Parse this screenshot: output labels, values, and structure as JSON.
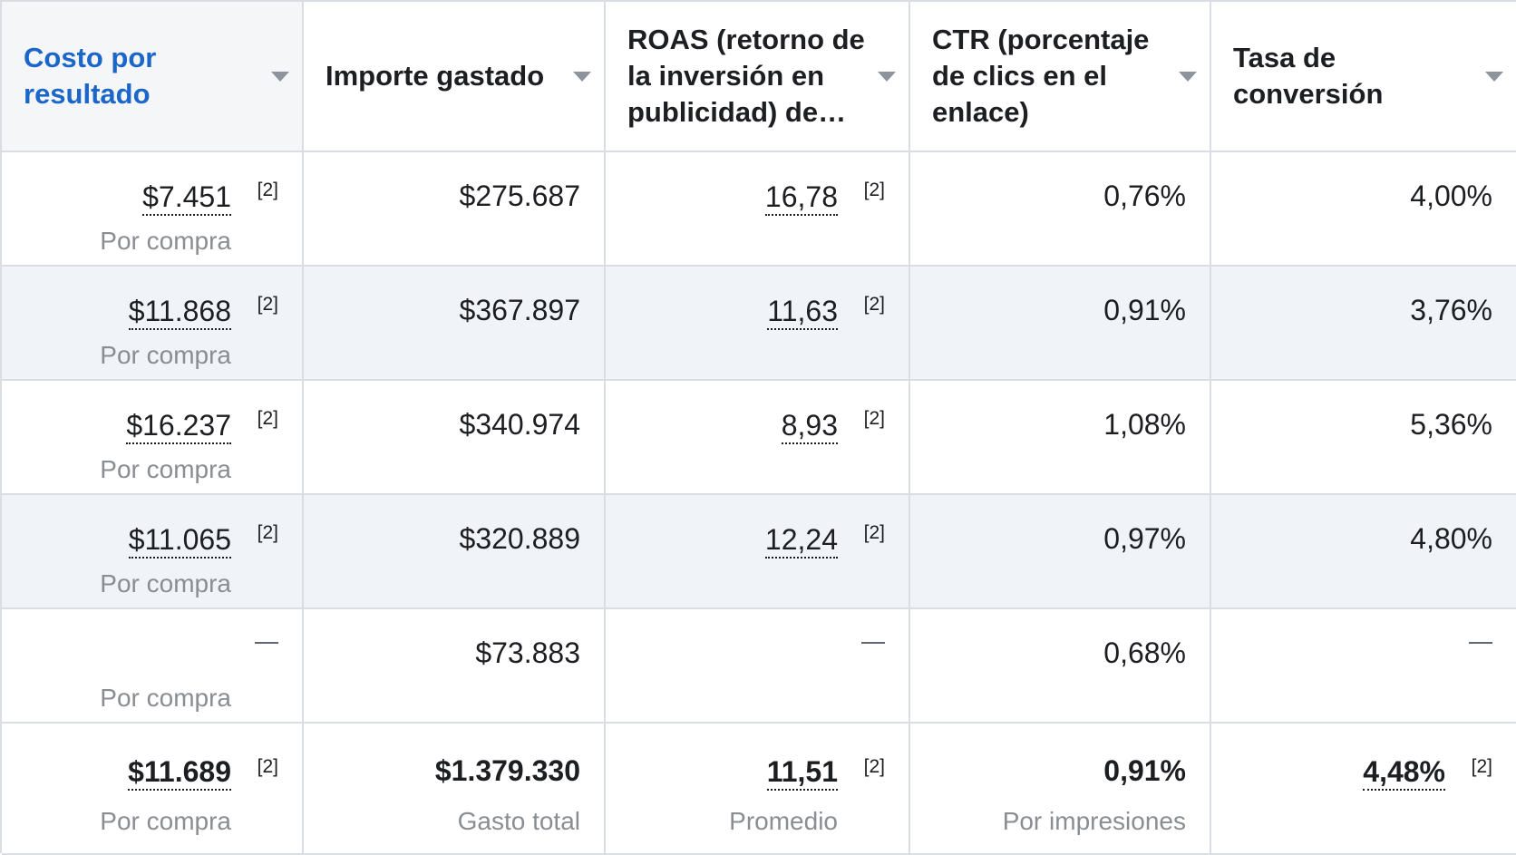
{
  "columns": [
    {
      "label": "Costo por resultado",
      "active": true
    },
    {
      "label": "Importe gastado",
      "active": false
    },
    {
      "label": "ROAS (retorno de la inversión en publicidad) de…",
      "active": false
    },
    {
      "label": "CTR (porcentaje de clics en el enlace)",
      "active": false
    },
    {
      "label": "Tasa de conversión",
      "active": false
    }
  ],
  "footnote": "[2]",
  "result_sublabel": "Por compra",
  "dash": "—",
  "rows": [
    {
      "cost": "$7.451",
      "spent": "$275.687",
      "roas": "16,78",
      "ctr": "0,76%",
      "conv": "4,00%"
    },
    {
      "cost": "$11.868",
      "spent": "$367.897",
      "roas": "11,63",
      "ctr": "0,91%",
      "conv": "3,76%"
    },
    {
      "cost": "$16.237",
      "spent": "$340.974",
      "roas": "8,93",
      "ctr": "1,08%",
      "conv": "5,36%"
    },
    {
      "cost": "$11.065",
      "spent": "$320.889",
      "roas": "12,24",
      "ctr": "0,97%",
      "conv": "4,80%"
    },
    {
      "cost": "",
      "spent": "$73.883",
      "roas": "",
      "ctr": "0,68%",
      "conv": ""
    }
  ],
  "totals": {
    "cost": "$11.689",
    "cost_sub": "Por compra",
    "spent": "$1.379.330",
    "spent_sub": "Gasto total",
    "roas": "11,51",
    "roas_sub": "Promedio",
    "ctr": "0,91%",
    "ctr_sub": "Por impresiones",
    "conv": "4,48%"
  },
  "colors": {
    "accent": "#1b66c9",
    "stripe": "#f0f3f7",
    "border": "#dadde1",
    "muted": "#8a8d91"
  }
}
